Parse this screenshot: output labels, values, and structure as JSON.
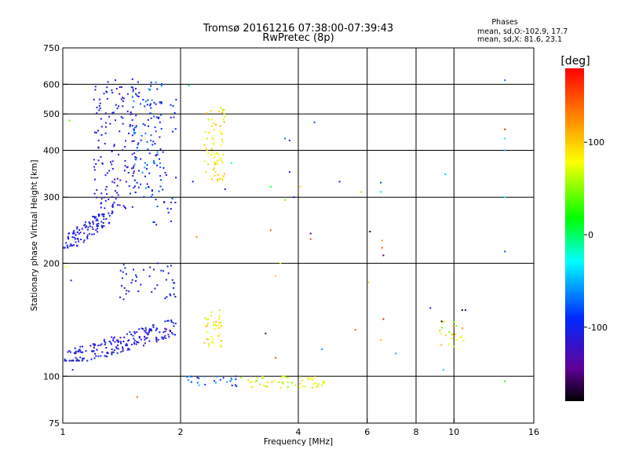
{
  "chart_data": {
    "type": "scatter",
    "title": "Tromsø 20161216 07:38:00-07:39:43",
    "subtitle": "RwPretec (8p)",
    "phases": {
      "heading": "Phases",
      "line_o": "mean, sd,O:-102.9, 17.7",
      "line_x": "mean, sd,X:  81.6, 23.1"
    },
    "xlabel": "Frequency [MHz]",
    "ylabel": "Stationary phase Virtual Height [km]",
    "x_scale": "log",
    "y_scale": "log",
    "xlim": [
      1,
      16
    ],
    "ylim": [
      75,
      750
    ],
    "x_ticks": [
      {
        "v": 1,
        "label": "1"
      },
      {
        "v": 2,
        "label": "2"
      },
      {
        "v": 4,
        "label": "4"
      },
      {
        "v": 6,
        "label": "6"
      },
      {
        "v": 8,
        "label": "8"
      },
      {
        "v": 10,
        "label": "10"
      },
      {
        "v": 16,
        "label": "16"
      }
    ],
    "x_grid": [
      2,
      4,
      6,
      8,
      10
    ],
    "y_ticks": [
      {
        "v": 75,
        "label": "75"
      },
      {
        "v": 100,
        "label": "100"
      },
      {
        "v": 200,
        "label": "200"
      },
      {
        "v": 300,
        "label": "300"
      },
      {
        "v": 400,
        "label": "400"
      },
      {
        "v": 500,
        "label": "500"
      },
      {
        "v": 600,
        "label": "600"
      },
      {
        "v": 750,
        "label": "750"
      }
    ],
    "y_grid": [
      100,
      200,
      300,
      400,
      500,
      600
    ],
    "colorbar": {
      "label": "[deg]",
      "range": [
        -180,
        180
      ],
      "ticks": [
        {
          "v": 100,
          "label": "100"
        },
        {
          "v": 0,
          "label": "0"
        },
        {
          "v": -100,
          "label": "-100"
        }
      ]
    },
    "clusters": [
      {
        "f": [
          1.0,
          1.35
        ],
        "h": [
          220,
          300
        ],
        "phase": [
          -115,
          -95
        ],
        "count": 110,
        "trend": "rise"
      },
      {
        "f": [
          1.2,
          1.55
        ],
        "h": [
          280,
          620
        ],
        "phase": [
          -125,
          -95
        ],
        "count": 150,
        "trend": "none"
      },
      {
        "f": [
          1.5,
          1.8
        ],
        "h": [
          300,
          620
        ],
        "phase": [
          -120,
          -55
        ],
        "count": 110,
        "trend": "none"
      },
      {
        "f": [
          1.7,
          1.95
        ],
        "h": [
          250,
          560
        ],
        "phase": [
          -118,
          -80
        ],
        "count": 40,
        "trend": "none"
      },
      {
        "f": [
          1.0,
          1.95
        ],
        "h": [
          110,
          145
        ],
        "phase": [
          -125,
          -90
        ],
        "count": 200,
        "trend": "rise"
      },
      {
        "f": [
          1.4,
          1.95
        ],
        "h": [
          160,
          200
        ],
        "phase": [
          -118,
          -95
        ],
        "count": 45,
        "trend": "none"
      },
      {
        "f": [
          2.05,
          2.8
        ],
        "h": [
          94,
          100
        ],
        "phase": [
          -110,
          -40
        ],
        "count": 25,
        "trend": "none"
      },
      {
        "f": [
          2.85,
          4.7
        ],
        "h": [
          93,
          100
        ],
        "phase": [
          45,
          95
        ],
        "count": 55,
        "trend": "none"
      },
      {
        "f": [
          2.3,
          2.6
        ],
        "h": [
          330,
          520
        ],
        "phase": [
          60,
          110
        ],
        "count": 70,
        "trend": "none"
      },
      {
        "f": [
          2.3,
          2.55
        ],
        "h": [
          120,
          150
        ],
        "phase": [
          50,
          110
        ],
        "count": 40,
        "trend": "none"
      },
      {
        "f": [
          9.2,
          10.6
        ],
        "h": [
          120,
          140
        ],
        "phase": [
          30,
          140
        ],
        "count": 22,
        "trend": "none"
      }
    ],
    "isolated_points": [
      {
        "x": 1.04,
        "y": 480,
        "phase": 40
      },
      {
        "x": 1.05,
        "y": 180,
        "phase": -115
      },
      {
        "x": 1.02,
        "y": 196,
        "phase": 80
      },
      {
        "x": 1.06,
        "y": 104,
        "phase": -110
      },
      {
        "x": 1.55,
        "y": 88,
        "phase": 140
      },
      {
        "x": 2.1,
        "y": 595,
        "phase": -10
      },
      {
        "x": 2.15,
        "y": 330,
        "phase": -90
      },
      {
        "x": 2.2,
        "y": 235,
        "phase": 130
      },
      {
        "x": 2.6,
        "y": 315,
        "phase": -110
      },
      {
        "x": 2.7,
        "y": 370,
        "phase": -20
      },
      {
        "x": 3.3,
        "y": 130,
        "phase": -150
      },
      {
        "x": 3.4,
        "y": 245,
        "phase": 145
      },
      {
        "x": 3.4,
        "y": 320,
        "phase": 10
      },
      {
        "x": 3.5,
        "y": 185,
        "phase": 100
      },
      {
        "x": 3.5,
        "y": 112,
        "phase": 140
      },
      {
        "x": 3.6,
        "y": 200,
        "phase": 90
      },
      {
        "x": 3.7,
        "y": 295,
        "phase": 40
      },
      {
        "x": 3.7,
        "y": 430,
        "phase": -70
      },
      {
        "x": 3.8,
        "y": 425,
        "phase": -115
      },
      {
        "x": 3.8,
        "y": 350,
        "phase": -110
      },
      {
        "x": 3.9,
        "y": 300,
        "phase": -95
      },
      {
        "x": 4.05,
        "y": 320,
        "phase": 100
      },
      {
        "x": 4.3,
        "y": 240,
        "phase": -150
      },
      {
        "x": 4.3,
        "y": 232,
        "phase": 150
      },
      {
        "x": 4.4,
        "y": 475,
        "phase": -80
      },
      {
        "x": 4.6,
        "y": 118,
        "phase": -60
      },
      {
        "x": 5.1,
        "y": 330,
        "phase": -100
      },
      {
        "x": 5.6,
        "y": 133,
        "phase": 140
      },
      {
        "x": 5.8,
        "y": 310,
        "phase": 100
      },
      {
        "x": 6.05,
        "y": 178,
        "phase": 100
      },
      {
        "x": 6.1,
        "y": 243,
        "phase": -170
      },
      {
        "x": 6.5,
        "y": 328,
        "phase": -80
      },
      {
        "x": 6.5,
        "y": 310,
        "phase": -35
      },
      {
        "x": 6.55,
        "y": 230,
        "phase": 120
      },
      {
        "x": 6.55,
        "y": 220,
        "phase": 150
      },
      {
        "x": 6.6,
        "y": 210,
        "phase": -150
      },
      {
        "x": 6.6,
        "y": 142,
        "phase": 175
      },
      {
        "x": 6.5,
        "y": 125,
        "phase": 100
      },
      {
        "x": 7.1,
        "y": 115,
        "phase": -50
      },
      {
        "x": 8.7,
        "y": 152,
        "phase": -110
      },
      {
        "x": 9.3,
        "y": 140,
        "phase": -170
      },
      {
        "x": 9.4,
        "y": 104,
        "phase": -40
      },
      {
        "x": 9.5,
        "y": 345,
        "phase": -40
      },
      {
        "x": 10.5,
        "y": 150,
        "phase": -170
      },
      {
        "x": 10.7,
        "y": 150,
        "phase": -160
      },
      {
        "x": 13.5,
        "y": 615,
        "phase": -70
      },
      {
        "x": 13.5,
        "y": 455,
        "phase": 170
      },
      {
        "x": 13.5,
        "y": 430,
        "phase": -20
      },
      {
        "x": 13.5,
        "y": 400,
        "phase": -50
      },
      {
        "x": 13.5,
        "y": 300,
        "phase": -30
      },
      {
        "x": 13.5,
        "y": 215,
        "phase": -80
      },
      {
        "x": 13.5,
        "y": 97,
        "phase": 30
      }
    ]
  }
}
